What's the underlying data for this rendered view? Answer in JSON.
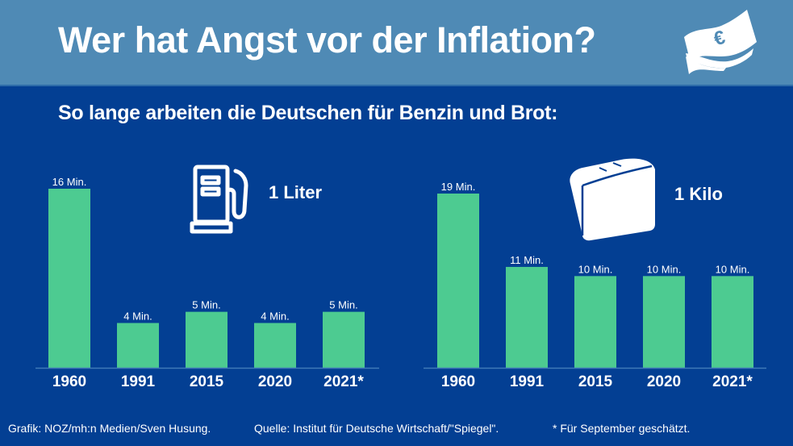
{
  "header": {
    "title": "Wer hat Angst vor der Inflation?",
    "icon": "euro-banknote-icon"
  },
  "subtitle": "So lange arbeiten die Deutschen für Benzin und Brot:",
  "colors": {
    "background": "#033F93",
    "header_background": "#4F8AB5",
    "bar": "#4DCB91",
    "text": "#FFFFFF"
  },
  "chart_data": [
    {
      "type": "bar",
      "title": "1 Liter",
      "icon": "fuel-pump-icon",
      "categories": [
        "1960",
        "1991",
        "2015",
        "2020",
        "2021*"
      ],
      "values": [
        16,
        4,
        5,
        4,
        5
      ],
      "value_labels": [
        "16 Min.",
        "4 Min.",
        "5 Min.",
        "4 Min.",
        "5 Min."
      ],
      "unit": "Min.",
      "xlabel": "",
      "ylabel": "",
      "ylim": [
        0,
        16
      ],
      "grid": false
    },
    {
      "type": "bar",
      "title": "1 Kilo",
      "icon": "bread-loaf-icon",
      "categories": [
        "1960",
        "1991",
        "2015",
        "2020",
        "2021*"
      ],
      "values": [
        19,
        11,
        10,
        10,
        10
      ],
      "value_labels": [
        "19 Min.",
        "11 Min.",
        "10 Min.",
        "10 Min.",
        "10 Min."
      ],
      "unit": "Min.",
      "xlabel": "",
      "ylabel": "",
      "ylim": [
        0,
        19
      ],
      "grid": false
    }
  ],
  "footer": {
    "credit": "Grafik: NOZ/mh:n Medien/Sven Husung.",
    "source": "Quelle: Institut für Deutsche Wirtschaft/\"Spiegel\".",
    "note": "* Für September geschätzt."
  }
}
